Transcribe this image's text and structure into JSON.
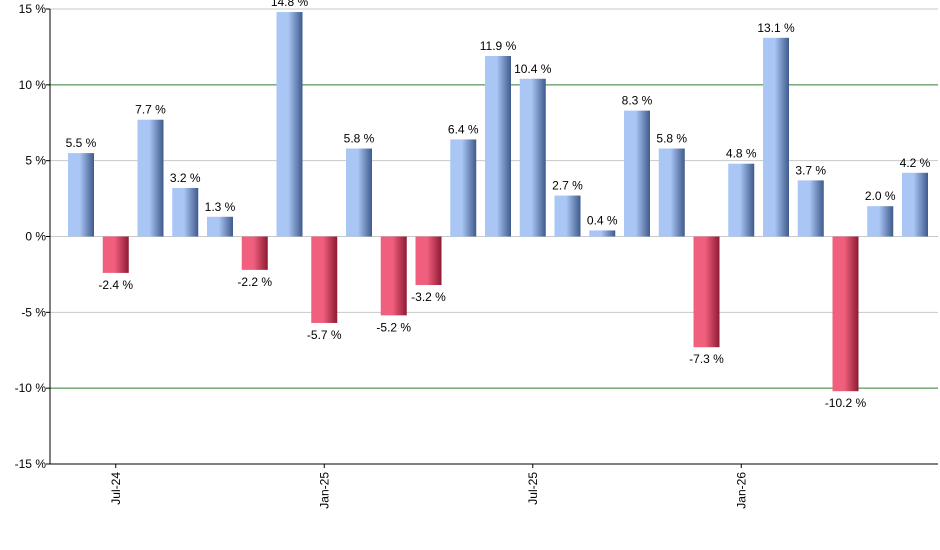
{
  "chart_data": {
    "type": "bar",
    "title": "",
    "xlabel": "",
    "ylabel": "",
    "ylim": [
      -15,
      15
    ],
    "y_ticks": [
      {
        "value": -15,
        "label": "-15 %"
      },
      {
        "value": -10,
        "label": "-10 %"
      },
      {
        "value": -5,
        "label": "-5 %"
      },
      {
        "value": 0,
        "label": "0 %"
      },
      {
        "value": 5,
        "label": "5 %"
      },
      {
        "value": 10,
        "label": "10 %"
      },
      {
        "value": 15,
        "label": "15 %"
      }
    ],
    "categories": [
      "2024-06",
      "2024-07",
      "2024-08",
      "2024-09",
      "2024-10",
      "2024-11",
      "2024-12",
      "2025-01",
      "2025-02",
      "2025-03",
      "2025-04",
      "2025-05",
      "2025-06",
      "2025-07",
      "2025-08",
      "2025-09",
      "2025-10",
      "2025-11",
      "2025-12",
      "2026-01",
      "2026-02",
      "2026-03",
      "2026-04",
      "2026-05",
      "2026-06"
    ],
    "values": [
      5.5,
      -2.4,
      7.7,
      3.2,
      1.3,
      -2.2,
      14.8,
      -5.7,
      5.8,
      -5.2,
      -3.2,
      6.4,
      11.9,
      10.4,
      2.7,
      0.4,
      8.3,
      5.8,
      -7.3,
      4.8,
      13.1,
      3.7,
      -10.2,
      2.0,
      4.2
    ],
    "data_labels": [
      "5.5 %",
      "-2.4 %",
      "7.7 %",
      "3.2 %",
      "1.3 %",
      "-2.2 %",
      "14.8 %",
      "-5.7 %",
      "5.8 %",
      "-5.2 %",
      "-3.2 %",
      "6.4 %",
      "11.9 %",
      "10.4 %",
      "2.7 %",
      "0.4 %",
      "8.3 %",
      "5.8 %",
      "-7.3 %",
      "4.8 %",
      "13.1 %",
      "3.7 %",
      "-10.2 %",
      "2.0 %",
      "4.2 %"
    ],
    "x_tick_labels": [
      {
        "category": "2024-07",
        "label": "Jul-24"
      },
      {
        "category": "2025-01",
        "label": "Jan-25"
      },
      {
        "category": "2025-07",
        "label": "Jul-25"
      },
      {
        "category": "2026-01",
        "label": "Jan-26"
      }
    ],
    "reference_lines": [
      10,
      -10
    ],
    "grid": true,
    "legend": "none",
    "colors": {
      "positive_light": "#a9c6f5",
      "positive_dark": "#3f5a8c",
      "negative_light": "#f0607e",
      "negative_dark": "#8e1a33",
      "grid": "#c8c8c8",
      "reference_line": "#2e7d32",
      "axis": "#000000"
    }
  }
}
